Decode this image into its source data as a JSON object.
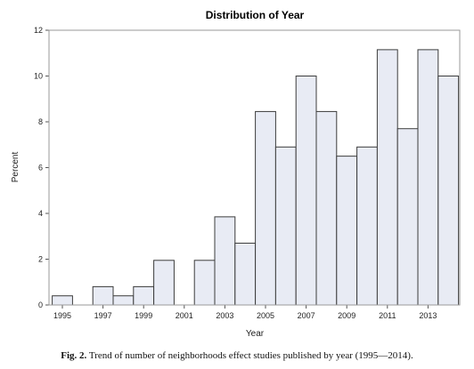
{
  "chart_data": {
    "type": "bar",
    "title": "Distribution of Year",
    "xlabel": "Year",
    "ylabel": "Percent",
    "categories": [
      "1995",
      "1996",
      "1997",
      "1998",
      "1999",
      "2000",
      "2001",
      "2002",
      "2003",
      "2004",
      "2005",
      "2006",
      "2007",
      "2008",
      "2009",
      "2010",
      "2011",
      "2012",
      "2013",
      "2014"
    ],
    "values": [
      0.4,
      0,
      0.8,
      0.4,
      0.8,
      1.95,
      0,
      1.95,
      3.85,
      2.7,
      8.45,
      6.9,
      10.0,
      8.45,
      6.5,
      6.9,
      11.15,
      7.7,
      11.15,
      10.0
    ],
    "ylim": [
      0,
      12
    ],
    "yticks": [
      0,
      2,
      4,
      6,
      8,
      10,
      12
    ],
    "xtick_labels": [
      "1995",
      "1997",
      "1999",
      "2001",
      "2003",
      "2005",
      "2007",
      "2009",
      "2011",
      "2013"
    ],
    "grid": false,
    "colors": {
      "bar_fill": "#e8ebf4",
      "bar_stroke": "#3c3c3c"
    }
  },
  "caption": {
    "label": "Fig. 2.",
    "text": "Trend of number of neighborhoods effect studies published by year (1995—2014)."
  }
}
